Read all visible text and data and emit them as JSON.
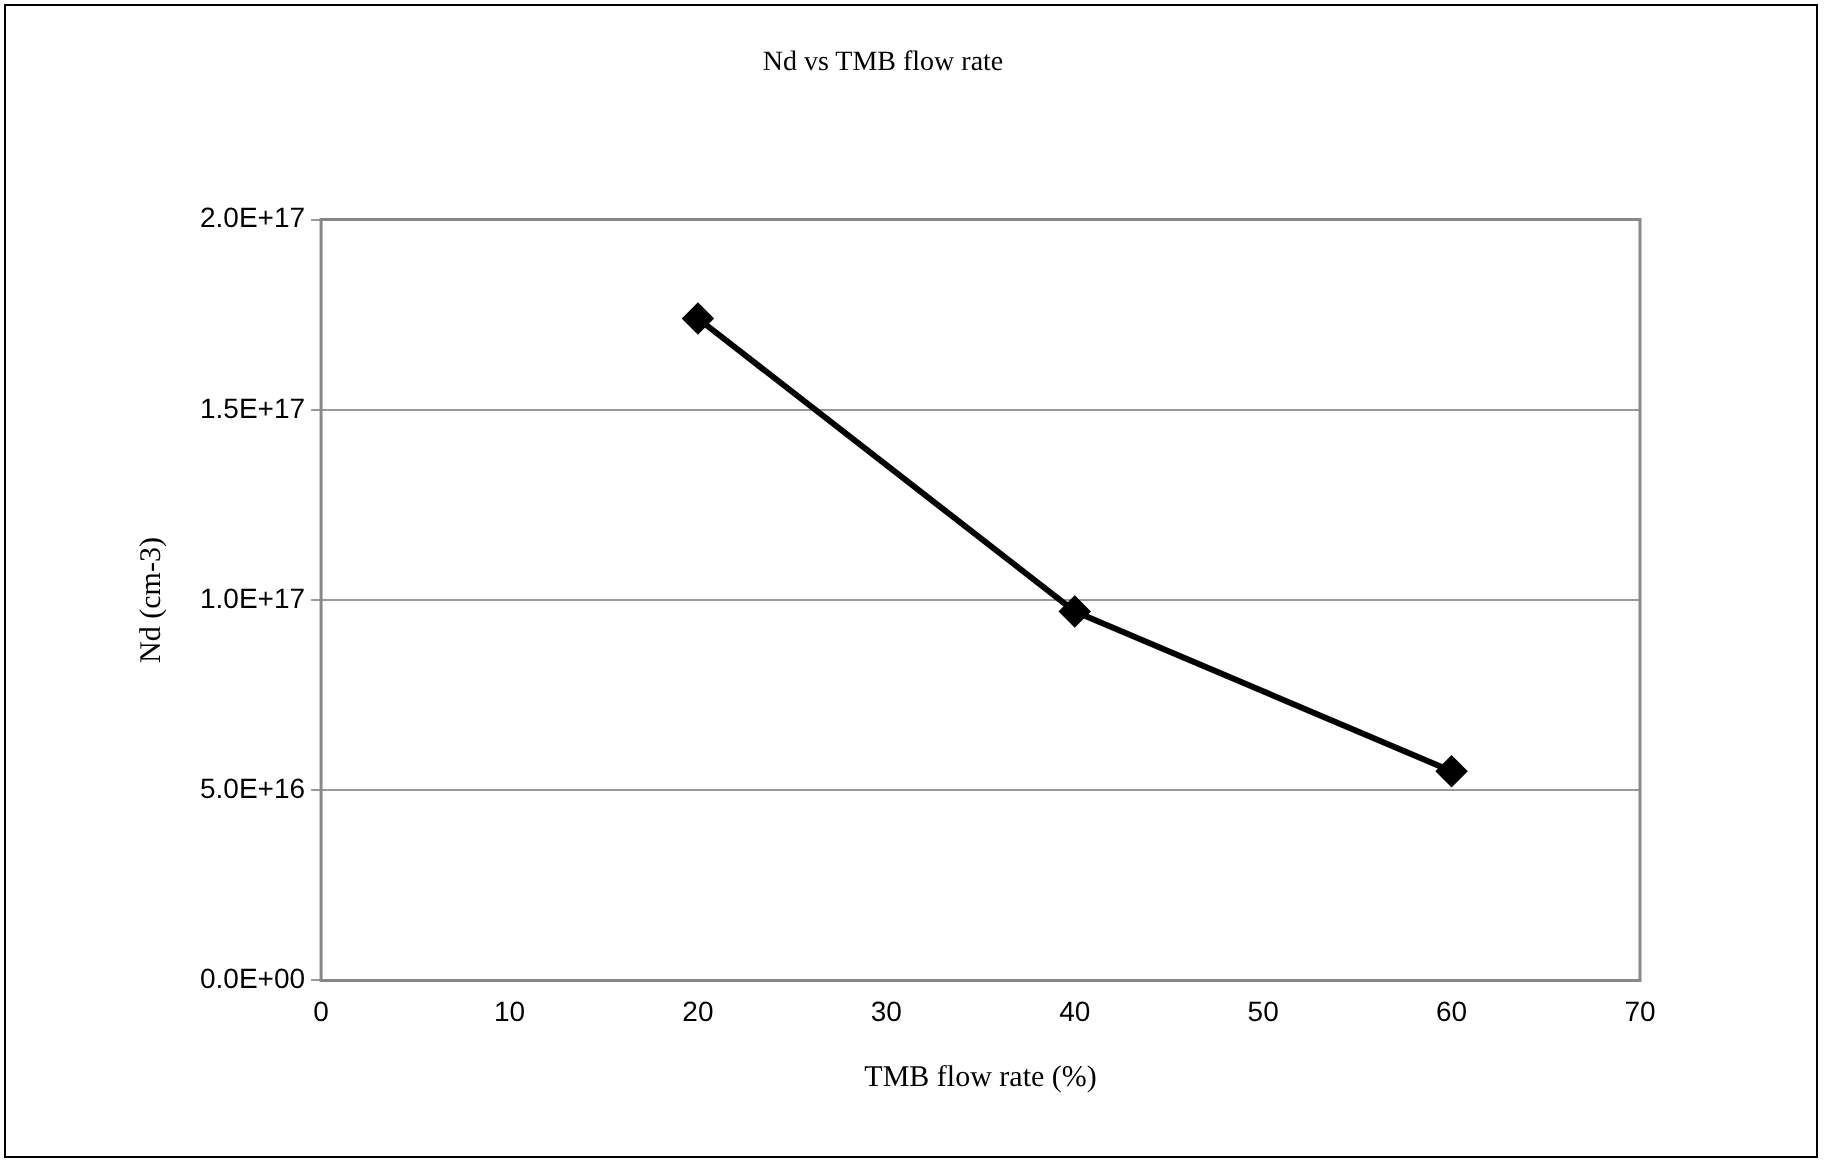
{
  "chart_data": {
    "type": "line",
    "title": "Nd vs TMB flow rate",
    "xlabel": "TMB flow rate (%)",
    "ylabel": "Nd (cm-3)",
    "x": [
      20,
      40,
      60
    ],
    "series": [
      {
        "color": "#000000",
        "values": [
          1.74e+17,
          9.7e+16,
          5.5e+16
        ]
      }
    ],
    "xlim": [
      0,
      70
    ],
    "xticks": [
      0,
      10,
      20,
      30,
      40,
      50,
      60,
      70
    ],
    "ylim": [
      0,
      2e+17
    ],
    "yticks": [
      {
        "value": 0,
        "label": "0.0E+00"
      },
      {
        "value": 5e+16,
        "label": "5.0E+16"
      },
      {
        "value": 1e+17,
        "label": "1.0E+17"
      },
      {
        "value": 1.5e+17,
        "label": "1.5E+17"
      },
      {
        "value": 2e+17,
        "label": "2.0E+17"
      }
    ],
    "grid": "y",
    "legend": false,
    "marker": "diamond",
    "line_style": "solid"
  }
}
